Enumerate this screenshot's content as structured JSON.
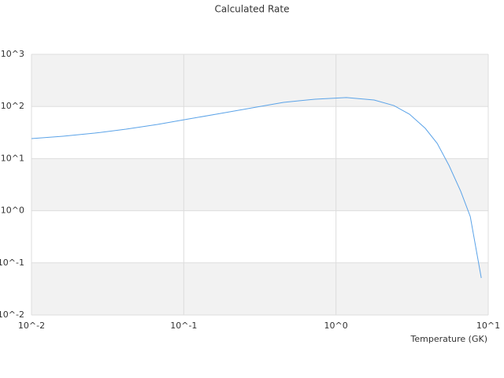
{
  "chart_data": {
    "type": "line",
    "title": "Calculated Rate",
    "x_label": "Temperature (GK)",
    "log_x": true,
    "log_y": true,
    "grid": true,
    "xlim": [
      0.01,
      10
    ],
    "ylim": [
      0.01,
      1000
    ],
    "xticks": [
      {
        "value": 0.01,
        "label": "10^-2"
      },
      {
        "value": 0.1,
        "label": "10^-1"
      },
      {
        "value": 1,
        "label": "10^0"
      },
      {
        "value": 10,
        "label": "10^1"
      }
    ],
    "yticks": [
      {
        "value": 0.01,
        "label": "10^-2"
      },
      {
        "value": 0.1,
        "label": "10^-1"
      },
      {
        "value": 1,
        "label": "10^0"
      },
      {
        "value": 10,
        "label": "10^1"
      },
      {
        "value": 100,
        "label": "10^2"
      },
      {
        "value": 1000,
        "label": "10^3"
      }
    ],
    "x": [
      0.01,
      0.0161,
      0.026,
      0.0418,
      0.0673,
      0.108,
      0.175,
      0.281,
      0.452,
      0.728,
      1.17,
      1.78,
      2.4,
      3.04,
      3.86,
      4.62,
      5.52,
      6.6,
      7.62,
      9.0
    ],
    "series": [
      {
        "color": "#5ba3e8",
        "values": [
          24.2,
          26.9,
          30.8,
          36.7,
          45.3,
          57.7,
          73.6,
          94,
          120,
          138,
          148,
          133,
          104,
          71,
          38,
          19.6,
          7.41,
          2.35,
          0.773,
          0.0513
        ]
      }
    ]
  }
}
